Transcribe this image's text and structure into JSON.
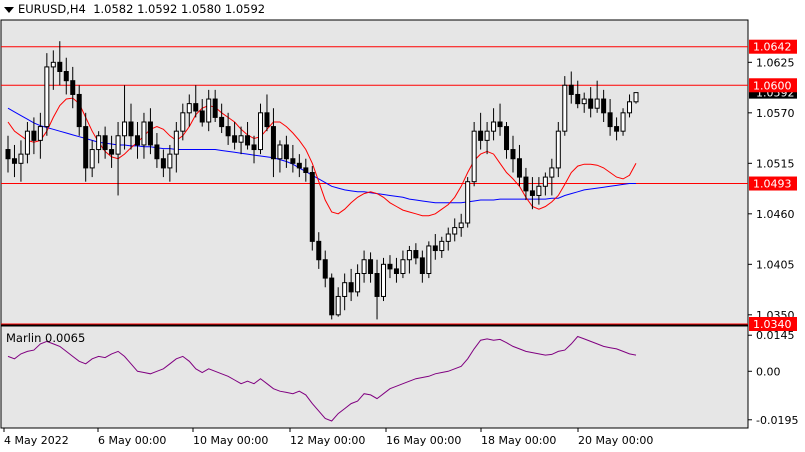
{
  "header": {
    "symbol": "EURUSD,H4",
    "ohlc": "1.0582 1.0592 1.0580 1.0592"
  },
  "indicator": {
    "label": "Marlin 0.0065"
  },
  "colors": {
    "bg": "#e6e6e6",
    "frame": "#000000",
    "level": "#ff0000",
    "ma_slow": "#0000ff",
    "ma_fast": "#ff0000",
    "marlin": "#800080",
    "candle": "#000000"
  },
  "chart_data": [
    {
      "type": "candlestick",
      "symbol": "EURUSD,H4",
      "ylim": [
        1.034,
        1.067
      ],
      "y_ticks": [
        "1.0625",
        "1.0570",
        "1.0515",
        "1.0460",
        "1.0405",
        "1.0350"
      ],
      "current_price": "1.0592",
      "levels": [
        {
          "value": 1.0642,
          "label": "1.0642"
        },
        {
          "value": 1.06,
          "label": "1.0600"
        },
        {
          "value": 1.0493,
          "label": "1.0493"
        },
        {
          "value": 1.034,
          "label": "1.0340"
        }
      ],
      "x_labels": [
        "4 May 2022",
        "6 May 00:00",
        "10 May 00:00",
        "12 May 00:00",
        "16 May 00:00",
        "18 May 00:00",
        "20 May 00:00"
      ],
      "candles": [
        [
          1.053,
          1.0545,
          1.0505,
          1.052
        ],
        [
          1.052,
          1.0535,
          1.05,
          1.0515
        ],
        [
          1.0515,
          1.054,
          1.0495,
          1.0525
        ],
        [
          1.0525,
          1.056,
          1.0515,
          1.055
        ],
        [
          1.055,
          1.0565,
          1.0525,
          1.054
        ],
        [
          1.054,
          1.057,
          1.052,
          1.0555
        ],
        [
          1.0555,
          1.0635,
          1.0545,
          1.062
        ],
        [
          1.062,
          1.0638,
          1.0595,
          1.0625
        ],
        [
          1.0625,
          1.0648,
          1.06,
          1.0615
        ],
        [
          1.0615,
          1.063,
          1.059,
          1.0605
        ],
        [
          1.0605,
          1.062,
          1.0575,
          1.059
        ],
        [
          1.059,
          1.06,
          1.0545,
          1.0555
        ],
        [
          1.0555,
          1.057,
          1.0495,
          1.051
        ],
        [
          1.051,
          1.054,
          1.05,
          1.053
        ],
        [
          1.053,
          1.055,
          1.0515,
          1.0545
        ],
        [
          1.0545,
          1.0555,
          1.052,
          1.053
        ],
        [
          1.053,
          1.0545,
          1.051,
          1.0525
        ],
        [
          1.0525,
          1.056,
          1.048,
          1.0545
        ],
        [
          1.0545,
          1.06,
          1.053,
          1.056
        ],
        [
          1.056,
          1.058,
          1.053,
          1.0545
        ],
        [
          1.0545,
          1.056,
          1.052,
          1.0535
        ],
        [
          1.0535,
          1.057,
          1.052,
          1.056
        ],
        [
          1.056,
          1.0575,
          1.0525,
          1.0535
        ],
        [
          1.0535,
          1.0548,
          1.051,
          1.052
        ],
        [
          1.052,
          1.053,
          1.05,
          1.051
        ],
        [
          1.051,
          1.0535,
          1.0495,
          1.0525
        ],
        [
          1.0525,
          1.056,
          1.0505,
          1.055
        ],
        [
          1.055,
          1.058,
          1.054,
          1.057
        ],
        [
          1.057,
          1.059,
          1.0555,
          1.058
        ],
        [
          1.058,
          1.06,
          1.0565,
          1.0572
        ],
        [
          1.0572,
          1.0585,
          1.0555,
          1.056
        ],
        [
          1.056,
          1.0595,
          1.055,
          1.0585
        ],
        [
          1.0585,
          1.0595,
          1.056,
          1.0565
        ],
        [
          1.0565,
          1.058,
          1.0548,
          1.0555
        ],
        [
          1.0555,
          1.057,
          1.0535,
          1.0545
        ],
        [
          1.0545,
          1.056,
          1.053,
          1.0538
        ],
        [
          1.0538,
          1.0555,
          1.0525,
          1.0545
        ],
        [
          1.0545,
          1.056,
          1.053,
          1.0535
        ],
        [
          1.0535,
          1.0545,
          1.0515,
          1.053
        ],
        [
          1.053,
          1.058,
          1.0525,
          1.057
        ],
        [
          1.057,
          1.059,
          1.055,
          1.0555
        ],
        [
          1.0555,
          1.0575,
          1.05,
          1.052
        ],
        [
          1.052,
          1.054,
          1.0505,
          1.0535
        ],
        [
          1.0535,
          1.0545,
          1.051,
          1.052
        ],
        [
          1.052,
          1.0535,
          1.0505,
          1.0515
        ],
        [
          1.0515,
          1.0525,
          1.05,
          1.051
        ],
        [
          1.051,
          1.052,
          1.0495,
          1.0505
        ],
        [
          1.0505,
          1.0512,
          1.042,
          1.043
        ],
        [
          1.043,
          1.044,
          1.04,
          1.041
        ],
        [
          1.041,
          1.042,
          1.038,
          1.039
        ],
        [
          1.039,
          1.0395,
          1.0345,
          1.035
        ],
        [
          1.035,
          1.038,
          1.0348,
          1.037
        ],
        [
          1.037,
          1.0395,
          1.0355,
          1.0385
        ],
        [
          1.0385,
          1.04,
          1.0365,
          1.0375
        ],
        [
          1.0375,
          1.0405,
          1.037,
          1.0395
        ],
        [
          1.0395,
          1.042,
          1.0385,
          1.041
        ],
        [
          1.041,
          1.0418,
          1.0385,
          1.0395
        ],
        [
          1.0395,
          1.041,
          1.0345,
          1.037
        ],
        [
          1.037,
          1.0412,
          1.0365,
          1.0405
        ],
        [
          1.0405,
          1.0415,
          1.039,
          1.04
        ],
        [
          1.04,
          1.0412,
          1.0385,
          1.0395
        ],
        [
          1.0395,
          1.042,
          1.039,
          1.041
        ],
        [
          1.041,
          1.0425,
          1.0395,
          1.042
        ],
        [
          1.042,
          1.0428,
          1.0405,
          1.0412
        ],
        [
          1.0412,
          1.042,
          1.0385,
          1.0395
        ],
        [
          1.0395,
          1.043,
          1.039,
          1.0425
        ],
        [
          1.0425,
          1.0438,
          1.041,
          1.042
        ],
        [
          1.042,
          1.0435,
          1.0412,
          1.043
        ],
        [
          1.043,
          1.0445,
          1.042,
          1.0438
        ],
        [
          1.0438,
          1.0455,
          1.043,
          1.0445
        ],
        [
          1.0445,
          1.046,
          1.0435,
          1.045
        ],
        [
          1.045,
          1.05,
          1.0445,
          1.0495
        ],
        [
          1.0495,
          1.056,
          1.049,
          1.055
        ],
        [
          1.055,
          1.057,
          1.053,
          1.054
        ],
        [
          1.054,
          1.056,
          1.0525,
          1.055
        ],
        [
          1.055,
          1.0575,
          1.054,
          1.056
        ],
        [
          1.056,
          1.058,
          1.0545,
          1.0555
        ],
        [
          1.0555,
          1.056,
          1.052,
          1.053
        ],
        [
          1.053,
          1.0545,
          1.0505,
          1.052
        ],
        [
          1.052,
          1.0535,
          1.049,
          1.05
        ],
        [
          1.05,
          1.051,
          1.0475,
          1.0485
        ],
        [
          1.0485,
          1.05,
          1.0465,
          1.048
        ],
        [
          1.048,
          1.05,
          1.047,
          1.049
        ],
        [
          1.049,
          1.0505,
          1.048,
          1.05
        ],
        [
          1.05,
          1.052,
          1.048,
          1.051
        ],
        [
          1.051,
          1.056,
          1.05,
          1.055
        ],
        [
          1.055,
          1.061,
          1.0545,
          1.06
        ],
        [
          1.06,
          1.0615,
          1.058,
          1.059
        ],
        [
          1.059,
          1.0605,
          1.0575,
          1.058
        ],
        [
          1.058,
          1.0592,
          1.057,
          1.0585
        ],
        [
          1.0585,
          1.0598,
          1.0565,
          1.0575
        ],
        [
          1.0575,
          1.0605,
          1.057,
          1.0585
        ],
        [
          1.0585,
          1.0595,
          1.056,
          1.057
        ],
        [
          1.057,
          1.0585,
          1.0545,
          1.0555
        ],
        [
          1.0555,
          1.0565,
          1.054,
          1.055
        ],
        [
          1.055,
          1.0575,
          1.0545,
          1.057
        ],
        [
          1.057,
          1.059,
          1.0565,
          1.0582
        ],
        [
          1.0582,
          1.0592,
          1.058,
          1.0592
        ]
      ],
      "ma_slow": [
        1.0575,
        1.0571,
        1.0567,
        1.0563,
        1.0559,
        1.0556,
        1.0554,
        1.0552,
        1.055,
        1.0548,
        1.0546,
        1.0544,
        1.0542,
        1.054,
        1.0538,
        1.0537,
        1.0536,
        1.0535,
        1.0535,
        1.0534,
        1.0534,
        1.0533,
        1.0533,
        1.0532,
        1.0531,
        1.0531,
        1.053,
        1.053,
        1.053,
        1.053,
        1.053,
        1.053,
        1.053,
        1.0529,
        1.0528,
        1.0527,
        1.0526,
        1.0525,
        1.0524,
        1.0523,
        1.0522,
        1.0521,
        1.0519,
        1.0517,
        1.0514,
        1.051,
        1.0506,
        1.0502,
        1.0498,
        1.0494,
        1.049,
        1.0488,
        1.0486,
        1.0485,
        1.0484,
        1.0484,
        1.0483,
        1.0482,
        1.0481,
        1.048,
        1.0479,
        1.0478,
        1.0476,
        1.0475,
        1.0474,
        1.0473,
        1.0472,
        1.0472,
        1.0472,
        1.0472,
        1.0472,
        1.0473,
        1.0474,
        1.0475,
        1.0475,
        1.0475,
        1.0476,
        1.0476,
        1.0476,
        1.0476,
        1.0476,
        1.0476,
        1.0476,
        1.0476,
        1.0477,
        1.0477,
        1.048,
        1.0482,
        1.0484,
        1.0486,
        1.0487,
        1.0488,
        1.0489,
        1.049,
        1.0491,
        1.0492,
        1.0493,
        1.0493
      ],
      "ma_fast": [
        1.056,
        1.055,
        1.0545,
        1.054,
        1.0538,
        1.054,
        1.055,
        1.0565,
        1.0578,
        1.0585,
        1.0586,
        1.058,
        1.0565,
        1.055,
        1.0538,
        1.0528,
        1.0522,
        1.052,
        1.0525,
        1.0532,
        1.0538,
        1.0545,
        1.0552,
        1.0555,
        1.0552,
        1.0545,
        1.054,
        1.0545,
        1.0555,
        1.0568,
        1.0575,
        1.0578,
        1.0576,
        1.057,
        1.0565,
        1.056,
        1.0552,
        1.0546,
        1.0542,
        1.0544,
        1.0552,
        1.056,
        1.056,
        1.0555,
        1.0548,
        1.054,
        1.053,
        1.0515,
        1.0495,
        1.0475,
        1.0462,
        1.046,
        1.0465,
        1.0472,
        1.0478,
        1.0482,
        1.0484,
        1.0482,
        1.0478,
        1.0472,
        1.0468,
        1.0464,
        1.0462,
        1.046,
        1.0458,
        1.0458,
        1.046,
        1.0465,
        1.047,
        1.0478,
        1.049,
        1.0505,
        1.0518,
        1.0525,
        1.0528,
        1.0525,
        1.0515,
        1.0505,
        1.0498,
        1.049,
        1.0478,
        1.0468,
        1.0465,
        1.0468,
        1.0473,
        1.048,
        1.0492,
        1.0505,
        1.0512,
        1.0514,
        1.0514,
        1.0513,
        1.051,
        1.0505,
        1.05,
        1.0498,
        1.0502,
        1.0515
      ]
    },
    {
      "type": "line",
      "name": "Marlin",
      "ylim": [
        -0.022,
        0.017
      ],
      "y_ticks": [
        "0.0145",
        "0.00",
        "-0.0195"
      ],
      "values": [
        0.006,
        0.005,
        0.007,
        0.008,
        0.0085,
        0.011,
        0.012,
        0.011,
        0.01,
        0.008,
        0.006,
        0.004,
        0.003,
        0.005,
        0.006,
        0.0055,
        0.007,
        0.008,
        0.006,
        0.003,
        0.0,
        -0.0005,
        -0.001,
        0.0,
        0.001,
        0.003,
        0.005,
        0.006,
        0.004,
        0.001,
        -0.0005,
        0.001,
        0.0,
        -0.001,
        -0.002,
        -0.0035,
        -0.005,
        -0.004,
        -0.005,
        -0.003,
        -0.005,
        -0.007,
        -0.008,
        -0.0085,
        -0.009,
        -0.008,
        -0.0095,
        -0.013,
        -0.016,
        -0.019,
        -0.02,
        -0.017,
        -0.015,
        -0.013,
        -0.012,
        -0.009,
        -0.0095,
        -0.011,
        -0.009,
        -0.007,
        -0.006,
        -0.005,
        -0.004,
        -0.003,
        -0.0025,
        -0.002,
        -0.001,
        -0.0005,
        0.0,
        0.001,
        0.002,
        0.005,
        0.009,
        0.0125,
        0.013,
        0.0125,
        0.0128,
        0.0115,
        0.01,
        0.009,
        0.008,
        0.0075,
        0.007,
        0.0065,
        0.0068,
        0.008,
        0.0085,
        0.011,
        0.014,
        0.013,
        0.012,
        0.011,
        0.01,
        0.0095,
        0.009,
        0.008,
        0.007,
        0.0065
      ]
    }
  ]
}
